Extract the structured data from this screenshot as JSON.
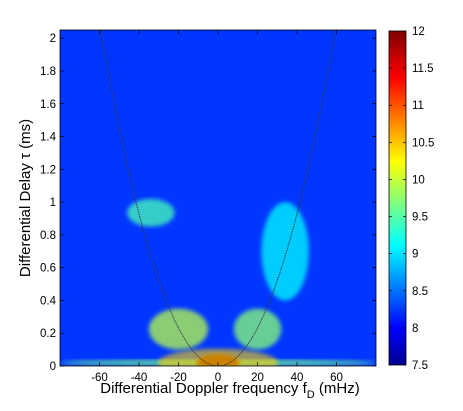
{
  "chart_data": {
    "type": "heatmap",
    "title": "",
    "xlabel": "Differential Doppler frequency f",
    "xlabel_subscript": "D",
    "xlabel_unit": " (mHz)",
    "ylabel": "Differential Delay τ (ms)",
    "xlim": [
      -80,
      80
    ],
    "ylim": [
      0,
      2.05
    ],
    "xticks": [
      -60,
      -40,
      -20,
      0,
      20,
      40,
      60
    ],
    "yticks": [
      0,
      0.2,
      0.4,
      0.6,
      0.8,
      1,
      1.2,
      1.4,
      1.6,
      1.8,
      2
    ],
    "ytick_labels": [
      "0",
      "0.2",
      "0.4",
      "0.6",
      "0.8",
      "1",
      "1.2",
      "1.4",
      "1.6",
      "1.8",
      "2"
    ],
    "colorbar": {
      "min": 7.5,
      "max": 12,
      "ticks": [
        7.5,
        8,
        8.5,
        9,
        9.5,
        10,
        10.5,
        11,
        11.5,
        12
      ],
      "tick_labels": [
        "7.5",
        "8",
        "8.5",
        "9",
        "9.5",
        "10",
        "10.5",
        "11",
        "11.5",
        "12"
      ],
      "colormap": "jet"
    },
    "background_level": 8.3,
    "parabola": {
      "curvature": 0.00058,
      "x_range": [
        -62,
        64
      ],
      "color": "#3a3a3a"
    },
    "features": [
      {
        "name": "zero-delay band",
        "x_range": [
          -80,
          80
        ],
        "tau_range": [
          0,
          0.04
        ],
        "level": 9.7
      },
      {
        "name": "central core",
        "x": 0,
        "tau": 0.02,
        "level": 12
      },
      {
        "name": "left arclet",
        "x_range": [
          -46,
          -22
        ],
        "tau_range": [
          0.85,
          1.02
        ],
        "level": 9.5
      },
      {
        "name": "right arclets",
        "x_range": [
          22,
          46
        ],
        "tau_range": [
          0.4,
          1.0
        ],
        "level": 9.2
      },
      {
        "name": "left inner arclets",
        "x_range": [
          -35,
          -5
        ],
        "tau_range": [
          0.1,
          0.35
        ],
        "level": 10
      },
      {
        "name": "right inner arclets",
        "x_range": [
          8,
          32
        ],
        "tau_range": [
          0.1,
          0.35
        ],
        "level": 9.8
      }
    ]
  }
}
